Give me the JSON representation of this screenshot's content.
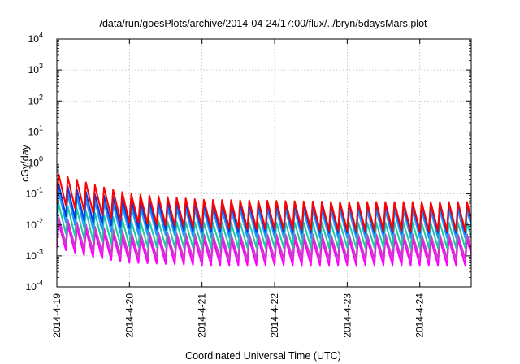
{
  "chart_data": {
    "type": "line",
    "title": "/data/run/goesPlots/archive/2014-04-24/17:00/flux/../bryn/5daysMars.plot",
    "xlabel": "Coordinated Universal Time (UTC)",
    "ylabel": "cGy/day",
    "yscale": "log",
    "ylim": [
      0.0001,
      10000
    ],
    "xlim": [
      "2014-04-19T00:00",
      "2014-04-24T17:00"
    ],
    "x_ticks": [
      "2014-4-19",
      "2014-4-20",
      "2014-4-21",
      "2014-4-22",
      "2014-4-23",
      "2014-4-24"
    ],
    "y_ticks": [
      {
        "value": 0.0001,
        "base": "10",
        "exp": "-4"
      },
      {
        "value": 0.001,
        "base": "10",
        "exp": "-3"
      },
      {
        "value": 0.01,
        "base": "10",
        "exp": "-2"
      },
      {
        "value": 0.1,
        "base": "10",
        "exp": "-1"
      },
      {
        "value": 1,
        "base": "10",
        "exp": "0"
      },
      {
        "value": 10,
        "base": "10",
        "exp": "1"
      },
      {
        "value": 100,
        "base": "10",
        "exp": "2"
      },
      {
        "value": 1000,
        "base": "10",
        "exp": "3"
      },
      {
        "value": 10000,
        "base": "10",
        "exp": "4"
      }
    ],
    "grid": true,
    "period_hours": 3,
    "series": [
      {
        "color": "#ff00ff",
        "envelope": [
          [
            0,
            0.012,
            0.0018
          ],
          [
            12,
            0.006,
            0.0009
          ],
          [
            24,
            0.004,
            0.0006
          ],
          [
            48,
            0.0035,
            0.0005
          ],
          [
            96,
            0.0035,
            0.0005
          ],
          [
            137,
            0.0035,
            0.0005
          ]
        ]
      },
      {
        "color": "#c83cc8",
        "envelope": [
          [
            0,
            0.018,
            0.0028
          ],
          [
            12,
            0.009,
            0.0014
          ],
          [
            24,
            0.006,
            0.0009
          ],
          [
            48,
            0.005,
            0.0008
          ],
          [
            96,
            0.005,
            0.0008
          ],
          [
            137,
            0.005,
            0.0008
          ]
        ]
      },
      {
        "color": "#20c8a0",
        "envelope": [
          [
            0,
            0.05,
            0.006
          ],
          [
            12,
            0.025,
            0.003
          ],
          [
            24,
            0.014,
            0.002
          ],
          [
            48,
            0.012,
            0.0018
          ],
          [
            96,
            0.012,
            0.0018
          ],
          [
            137,
            0.012,
            0.0018
          ]
        ]
      },
      {
        "color": "#1e96ff",
        "envelope": [
          [
            0,
            0.12,
            0.014
          ],
          [
            12,
            0.06,
            0.007
          ],
          [
            24,
            0.04,
            0.005
          ],
          [
            48,
            0.032,
            0.004
          ],
          [
            96,
            0.03,
            0.0038
          ],
          [
            137,
            0.03,
            0.0038
          ]
        ]
      },
      {
        "color": "#0040e0",
        "envelope": [
          [
            0,
            0.22,
            0.022
          ],
          [
            12,
            0.1,
            0.012
          ],
          [
            24,
            0.065,
            0.008
          ],
          [
            48,
            0.05,
            0.006
          ],
          [
            96,
            0.048,
            0.0055
          ],
          [
            137,
            0.048,
            0.0055
          ]
        ]
      },
      {
        "color": "#ff0000",
        "envelope": [
          [
            0,
            0.45,
            0.05
          ],
          [
            12,
            0.2,
            0.024
          ],
          [
            24,
            0.1,
            0.012
          ],
          [
            48,
            0.065,
            0.008
          ],
          [
            96,
            0.055,
            0.0065
          ],
          [
            137,
            0.055,
            0.0065
          ]
        ]
      }
    ]
  }
}
